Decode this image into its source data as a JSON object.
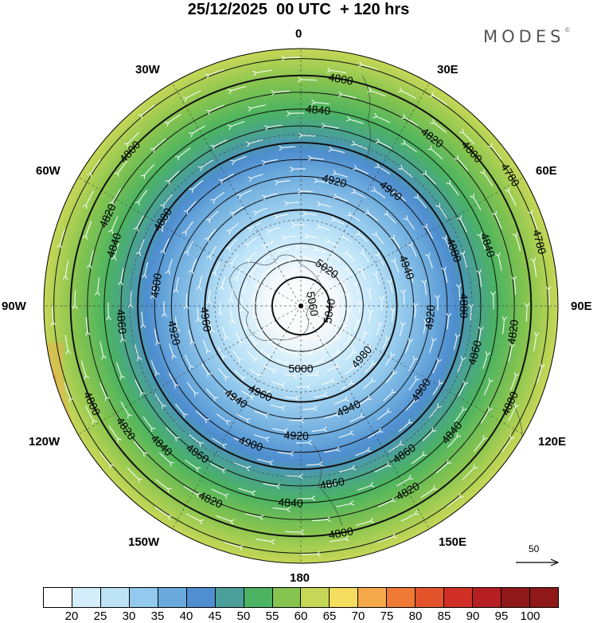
{
  "header": {
    "title": "25/12/2025  00 UTC  + 120 hrs",
    "brand": "MODES",
    "brand_mark": "©"
  },
  "longitude_labels": {
    "n": "0",
    "nne": "30E",
    "ene": "60E",
    "e": "90E",
    "ese": "120E",
    "sse": "150E",
    "s": "180",
    "ssw": "150W",
    "wsw": "120W",
    "w": "90W",
    "wnw": "60W",
    "nnw": "30W"
  },
  "contours": {
    "thick": [
      4800,
      4880,
      4960,
      5040
    ],
    "thin": [
      4780,
      4820,
      4840,
      4860,
      4900,
      4920,
      4940,
      5000,
      5020
    ],
    "labels": [
      {
        "text": "4800",
        "lon": 10,
        "ring": 4800
      },
      {
        "text": "4800",
        "lon": 48,
        "ring": 4800
      },
      {
        "text": "4780",
        "lon": 58,
        "ring": 4780
      },
      {
        "text": "4780",
        "lon": 75,
        "ring": 4780
      },
      {
        "text": "4820",
        "lon": 38,
        "ring": 4820
      },
      {
        "text": "4840",
        "lon": 5,
        "ring": 4840
      },
      {
        "text": "4900",
        "lon": 38,
        "ring": 4900
      },
      {
        "text": "4920",
        "lon": 15,
        "ring": 4920
      },
      {
        "text": "4840",
        "lon": 72,
        "ring": 4840
      },
      {
        "text": "4880",
        "lon": 70,
        "ring": 4880
      },
      {
        "text": "4940",
        "lon": 70,
        "ring": 4940
      },
      {
        "text": "5020",
        "lon": 35,
        "ring": 5020
      },
      {
        "text": "5060",
        "lon": 80,
        "ring": 5060
      },
      {
        "text": "5040",
        "lon": 100,
        "ring": 5040
      },
      {
        "text": "4880",
        "lon": 90,
        "ring": 4880
      },
      {
        "text": "4920",
        "lon": 95,
        "ring": 4920
      },
      {
        "text": "4860",
        "lon": 105,
        "ring": 4860
      },
      {
        "text": "4820",
        "lon": 97,
        "ring": 4820
      },
      {
        "text": "4800",
        "lon": 115,
        "ring": 4800
      },
      {
        "text": "4980",
        "lon": 130,
        "ring": 4980
      },
      {
        "text": "4900",
        "lon": 125,
        "ring": 4900
      },
      {
        "text": "4840",
        "lon": 130,
        "ring": 4840
      },
      {
        "text": "4860",
        "lon": 145,
        "ring": 4860
      },
      {
        "text": "4820",
        "lon": 150,
        "ring": 4820
      },
      {
        "text": "4940",
        "lon": 155,
        "ring": 4940
      },
      {
        "text": "5000",
        "lon": 180,
        "ring": 5000
      },
      {
        "text": "4920",
        "lon": 182,
        "ring": 4920
      },
      {
        "text": "4860",
        "lon": 170,
        "ring": 4860
      },
      {
        "text": "4840",
        "lon": 183,
        "ring": 4840
      },
      {
        "text": "4800",
        "lon": 170,
        "ring": 4800
      },
      {
        "text": "4960",
        "lon": 205,
        "ring": 4960
      },
      {
        "text": "4940",
        "lon": 215,
        "ring": 4940
      },
      {
        "text": "4900",
        "lon": 200,
        "ring": 4900
      },
      {
        "text": "4860",
        "lon": 215,
        "ring": 4860
      },
      {
        "text": "4820",
        "lon": 205,
        "ring": 4820
      },
      {
        "text": "4840",
        "lon": 225,
        "ring": 4840
      },
      {
        "text": "4820",
        "lon": 235,
        "ring": 4820
      },
      {
        "text": "4800",
        "lon": 245,
        "ring": 4800
      },
      {
        "text": "4960",
        "lon": 262,
        "ring": 4960
      },
      {
        "text": "4920",
        "lon": 258,
        "ring": 4920
      },
      {
        "text": "4860",
        "lon": 265,
        "ring": 4860
      },
      {
        "text": "4900",
        "lon": 278,
        "ring": 4900
      },
      {
        "text": "4840",
        "lon": 288,
        "ring": 4840
      },
      {
        "text": "4880",
        "lon": 302,
        "ring": 4880
      },
      {
        "text": "4820",
        "lon": 295,
        "ring": 4820
      },
      {
        "text": "4800",
        "lon": 312,
        "ring": 4800
      }
    ]
  },
  "wind_speed_colorbar": {
    "labels": [
      "20",
      "25",
      "30",
      "35",
      "40",
      "45",
      "50",
      "55",
      "60",
      "65",
      "70",
      "75",
      "80",
      "85",
      "90",
      "95",
      "100"
    ],
    "colors": [
      "#ffffff",
      "#d4eefb",
      "#bde3f7",
      "#93c9ec",
      "#6aa9dc",
      "#4f8ed0",
      "#4a9f9a",
      "#4bb361",
      "#86c44f",
      "#c6d757",
      "#f5dd60",
      "#f5a94a",
      "#ee7a36",
      "#e3532b",
      "#d12f26",
      "#b51f22",
      "#8e1918"
    ]
  },
  "wind_scale": {
    "label": "50"
  }
}
